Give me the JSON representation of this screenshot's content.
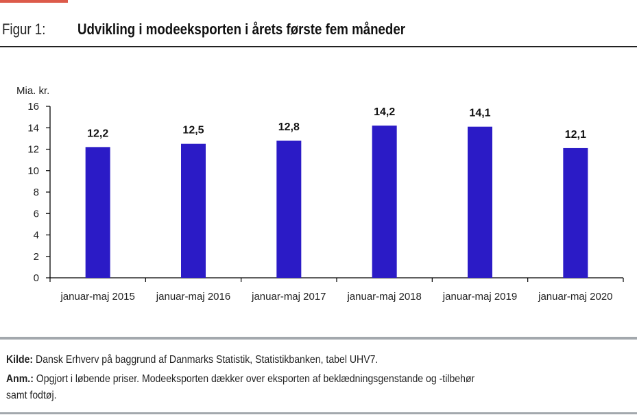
{
  "figure": {
    "label": "Figur 1:",
    "title": "Udvikling i modeeksporten i årets første fem måneder",
    "accent_color": "#dc5a4a"
  },
  "chart_data": {
    "type": "bar",
    "title": "Udvikling i modeeksporten i årets første fem måneder",
    "xlabel": "",
    "ylabel": "Mia. kr.",
    "categories": [
      "januar-maj 2015",
      "januar-maj 2016",
      "januar-maj 2017",
      "januar-maj 2018",
      "januar-maj 2019",
      "januar-maj 2020"
    ],
    "values": [
      12.2,
      12.5,
      12.8,
      14.2,
      14.1,
      12.1
    ],
    "value_labels": [
      "12,2",
      "12,5",
      "12,8",
      "14,2",
      "14,1",
      "12,1"
    ],
    "ylim": [
      0,
      16
    ],
    "yticks": [
      0,
      2,
      4,
      6,
      8,
      10,
      12,
      14,
      16
    ],
    "grid": false,
    "legend": "none",
    "bar_color": "#2b1bc6"
  },
  "footer": {
    "source_label": "Kilde:",
    "source_text": " Dansk Erhverv på baggrund af Danmarks Statistik, Statistikbanken, tabel UHV7.",
    "note_label": "Anm.:",
    "note_text_line1": " Opgjort i løbende priser. Modeeksporten dækker over eksporten af beklædningsgenstande og -tilbehør",
    "note_text_line2": "samt fodtøj."
  }
}
